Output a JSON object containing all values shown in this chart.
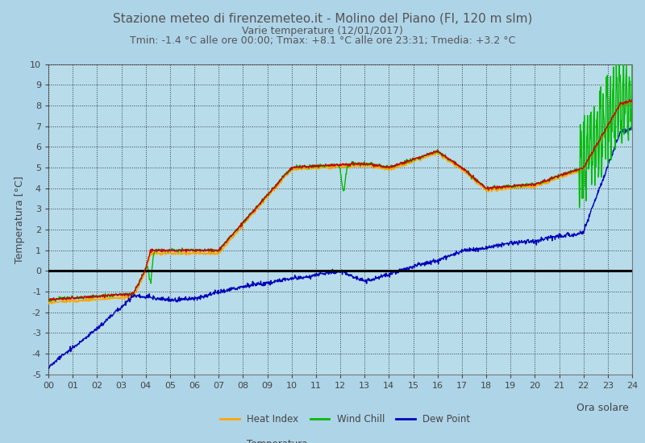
{
  "title": "Stazione meteo di firenzemeteo.it - Molino del Piano (FI, 120 m slm)",
  "subtitle1": "Varie temperature (12/01/2017)",
  "subtitle2": "Tmin: -1.4 °C alle ore 00:00; Tmax: +8.1 °C alle ore 23:31; Tmedia: +3.2 °C",
  "xlabel": "Ora solare",
  "ylabel": "Temperatura [°C]",
  "ylim": [
    -5,
    10
  ],
  "yticks": [
    -5,
    -4,
    -3,
    -2,
    -1,
    0,
    1,
    2,
    3,
    4,
    5,
    6,
    7,
    8,
    9,
    10
  ],
  "bg_color": "#aed4e8",
  "plot_bg_color": "#b8dcea",
  "grid_color": "#000000",
  "temp_color": "#cc0000",
  "heat_index_color": "#ffa500",
  "wind_chill_color": "#00bb00",
  "dew_point_color": "#0000bb",
  "zero_line_color": "#000000",
  "title_color": "#555555",
  "tick_color": "#444444"
}
